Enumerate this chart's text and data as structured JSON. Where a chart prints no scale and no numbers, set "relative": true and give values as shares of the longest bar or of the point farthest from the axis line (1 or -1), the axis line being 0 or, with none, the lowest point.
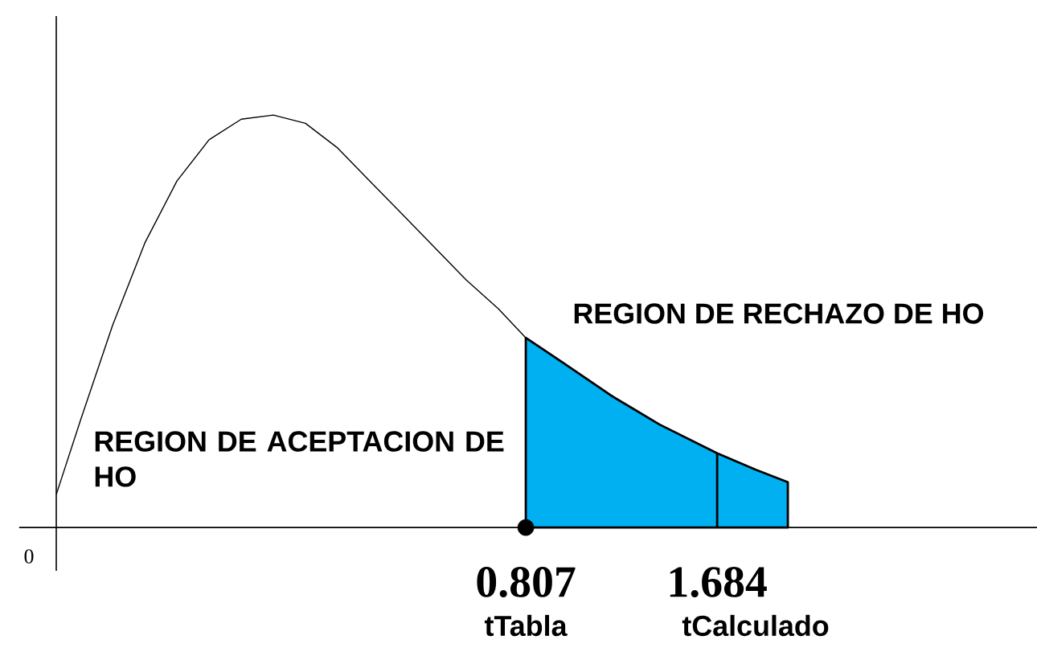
{
  "chart_data": {
    "type": "line",
    "relative": true,
    "xlim": [
      -1.345,
      3.15
    ],
    "xticks": [
      0.807,
      1.684
    ],
    "grid": false,
    "series": [
      {
        "color": "#000000",
        "x": [
          -1.345,
          -1.234,
          -1.087,
          -0.939,
          -0.792,
          -0.645,
          -0.497,
          -0.35,
          -0.203,
          -0.055,
          0.092,
          0.24,
          0.387,
          0.534,
          0.682,
          0.807,
          0.976,
          1.198,
          1.419,
          1.684,
          1.861,
          2.008
        ],
        "values": [
          0.08,
          0.26,
          0.49,
          0.69,
          0.84,
          0.94,
          0.99,
          1.0,
          0.98,
          0.92,
          0.84,
          0.76,
          0.68,
          0.6,
          0.53,
          0.46,
          0.4,
          0.32,
          0.25,
          0.18,
          0.14,
          0.11
        ]
      },
      {
        "type": "area",
        "color": "#00b0f0",
        "x": [
          0.807,
          0.976,
          1.198,
          1.419,
          1.684,
          1.861,
          2.008
        ],
        "values": [
          0.46,
          0.4,
          0.32,
          0.25,
          0.18,
          0.14,
          0.11
        ]
      },
      {
        "type": "scatter",
        "color": "#000000",
        "marker": "circle",
        "x": [
          0.807
        ],
        "values": [
          0
        ]
      }
    ],
    "ref_lines": [
      {
        "axis": "x",
        "value": 1.684,
        "color": "#000000"
      }
    ],
    "annotations": [
      "REGION DE RECHAZO DE HO",
      "REGION DE ACEPTACION DE HO",
      "tTabla",
      "tCalculado",
      "0"
    ]
  }
}
